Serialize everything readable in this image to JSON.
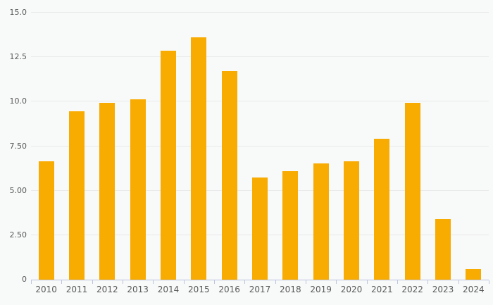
{
  "chart_data": {
    "type": "bar",
    "title": "",
    "xlabel": "",
    "ylabel": "",
    "categories": [
      "2010",
      "2011",
      "2012",
      "2013",
      "2014",
      "2015",
      "2016",
      "2017",
      "2018",
      "2019",
      "2020",
      "2021",
      "2022",
      "2023",
      "2024"
    ],
    "values": [
      6.65,
      9.45,
      9.95,
      10.15,
      12.85,
      13.6,
      11.7,
      5.75,
      6.1,
      6.55,
      6.65,
      7.9,
      9.95,
      3.4,
      0.6
    ],
    "ylim": [
      0,
      15
    ],
    "y_ticks": [
      {
        "value": 0,
        "label": "0"
      },
      {
        "value": 2.5,
        "label": "2.50"
      },
      {
        "value": 5,
        "label": "5.00"
      },
      {
        "value": 7.5,
        "label": "7.50"
      },
      {
        "value": 10,
        "label": "10.0"
      },
      {
        "value": 12.5,
        "label": "12.5"
      },
      {
        "value": 15,
        "label": "15.0"
      }
    ],
    "grid": "horizontal",
    "legend_position": "none",
    "colors": {
      "bar": "#f8ab00",
      "background": "#f8f9f9",
      "gridline": "#e9e9e9",
      "axis": "#bcc5de",
      "label_text": "#595959"
    }
  }
}
